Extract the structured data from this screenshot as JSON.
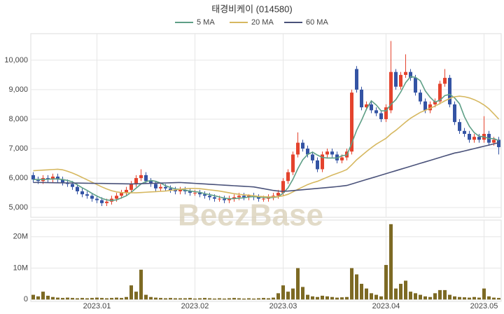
{
  "watermark": "BeezBase",
  "chart_data": [
    {
      "type": "candlestick",
      "title": "태경비케이 (014580)",
      "open": [
        6100,
        5950,
        5900,
        6000,
        5950,
        6050,
        5950,
        5850,
        5800,
        5700,
        5550,
        5450,
        5400,
        5300,
        5250,
        5150,
        5200,
        5300,
        5400,
        5500,
        5600,
        5800,
        6000,
        6100,
        5900,
        5800,
        5650,
        5700,
        5650,
        5600,
        5550,
        5600,
        5550,
        5500,
        5500,
        5450,
        5400,
        5350,
        5300,
        5300,
        5250,
        5300,
        5350,
        5400,
        5350,
        5400,
        5350,
        5300,
        5300,
        5350,
        5400,
        5500,
        5900,
        6200,
        6800,
        7200,
        7000,
        6800,
        6600,
        6300,
        6800,
        6900,
        6800,
        6600,
        6700,
        6900,
        9700,
        9000,
        8400,
        8500,
        8300,
        8200,
        8000,
        8300,
        9600,
        9100,
        9500,
        9600,
        9400,
        8900,
        8600,
        8300,
        8500,
        8600,
        9200,
        9400,
        8500,
        7900,
        7600,
        7500,
        7300,
        7400,
        7300,
        7500,
        7200,
        7300
      ],
      "high": [
        6200,
        6050,
        6100,
        6100,
        6150,
        6150,
        6050,
        5950,
        5900,
        5800,
        5650,
        5550,
        5500,
        5400,
        5350,
        5300,
        5400,
        5500,
        5600,
        5700,
        5900,
        6100,
        6300,
        6200,
        6000,
        5900,
        5800,
        5800,
        5750,
        5700,
        5700,
        5700,
        5650,
        5600,
        5600,
        5550,
        5500,
        5450,
        5400,
        5400,
        5400,
        5450,
        5500,
        5500,
        5450,
        5500,
        5450,
        5400,
        5450,
        5500,
        5600,
        6000,
        6300,
        6900,
        7550,
        7300,
        7100,
        6900,
        6700,
        6900,
        7000,
        7000,
        6900,
        6800,
        7000,
        9000,
        9800,
        9100,
        8600,
        8600,
        8400,
        8300,
        8500,
        10650,
        9700,
        9600,
        10200,
        9700,
        9500,
        9000,
        8700,
        8600,
        8700,
        9300,
        9700,
        9500,
        8600,
        8000,
        7700,
        7600,
        7500,
        7500,
        8100,
        7600,
        7400,
        7400
      ],
      "low": [
        5850,
        5800,
        5800,
        5850,
        5850,
        5850,
        5750,
        5700,
        5600,
        5450,
        5350,
        5300,
        5200,
        5150,
        5050,
        5050,
        5100,
        5200,
        5300,
        5400,
        5500,
        5700,
        5900,
        5800,
        5700,
        5550,
        5550,
        5550,
        5500,
        5450,
        5450,
        5450,
        5400,
        5400,
        5350,
        5300,
        5250,
        5200,
        5200,
        5150,
        5150,
        5200,
        5250,
        5250,
        5250,
        5250,
        5200,
        5200,
        5200,
        5250,
        5300,
        5400,
        5800,
        6100,
        6700,
        6900,
        6700,
        6500,
        6200,
        6200,
        6700,
        6700,
        6500,
        6500,
        6600,
        6800,
        8900,
        8300,
        8300,
        8200,
        8100,
        7900,
        7900,
        8200,
        9000,
        9000,
        9400,
        9300,
        8800,
        8500,
        8200,
        8200,
        8400,
        8500,
        9100,
        8400,
        7800,
        7500,
        7400,
        7200,
        7200,
        7200,
        7200,
        7100,
        7100,
        6800
      ],
      "close": [
        5950,
        5900,
        6000,
        5950,
        6050,
        5950,
        5850,
        5800,
        5700,
        5550,
        5450,
        5400,
        5300,
        5250,
        5150,
        5200,
        5300,
        5400,
        5500,
        5600,
        5800,
        6000,
        6100,
        5900,
        5800,
        5650,
        5700,
        5650,
        5600,
        5550,
        5600,
        5550,
        5500,
        5500,
        5450,
        5400,
        5350,
        5300,
        5300,
        5250,
        5300,
        5350,
        5400,
        5350,
        5400,
        5350,
        5300,
        5300,
        5350,
        5400,
        5500,
        5900,
        6200,
        6800,
        7200,
        7000,
        6800,
        6600,
        6300,
        6800,
        6900,
        6800,
        6600,
        6700,
        6900,
        8900,
        9000,
        8400,
        8500,
        8300,
        8200,
        8000,
        8400,
        9600,
        9100,
        9500,
        9600,
        9400,
        8900,
        8600,
        8300,
        8500,
        8600,
        9200,
        9400,
        8500,
        7900,
        7600,
        7500,
        7300,
        7400,
        7300,
        7500,
        7200,
        7300,
        7050
      ],
      "up_color": "#e4432d",
      "down_color": "#3454a4",
      "series": [
        {
          "name": "5 MA",
          "color": "#5e9f86",
          "values": [
            5950,
            5950,
            5950,
            5960,
            5970,
            5970,
            5950,
            5920,
            5870,
            5770,
            5670,
            5580,
            5480,
            5390,
            5310,
            5260,
            5240,
            5260,
            5330,
            5400,
            5520,
            5660,
            5800,
            5880,
            5920,
            5890,
            5830,
            5740,
            5680,
            5630,
            5620,
            5590,
            5560,
            5540,
            5520,
            5470,
            5440,
            5400,
            5360,
            5320,
            5300,
            5300,
            5320,
            5330,
            5360,
            5370,
            5360,
            5340,
            5340,
            5340,
            5370,
            5490,
            5670,
            5960,
            6320,
            6620,
            6800,
            6880,
            6780,
            6700,
            6680,
            6680,
            6680,
            6760,
            6780,
            7180,
            7620,
            7960,
            8340,
            8620,
            8480,
            8280,
            8280,
            8500,
            8660,
            8920,
            9240,
            9440,
            9420,
            9300,
            8960,
            8740,
            8580,
            8640,
            8800,
            8840,
            8720,
            8520,
            8080,
            7760,
            7540,
            7420,
            7400,
            7340,
            7340,
            7270
          ]
        },
        {
          "name": "20 MA",
          "color": "#d6b860",
          "values": [
            6250,
            6260,
            6270,
            6280,
            6290,
            6300,
            6280,
            6230,
            6170,
            6100,
            6020,
            5940,
            5860,
            5780,
            5700,
            5630,
            5570,
            5530,
            5510,
            5500,
            5500,
            5500,
            5510,
            5520,
            5530,
            5540,
            5550,
            5560,
            5580,
            5600,
            5620,
            5640,
            5650,
            5650,
            5640,
            5620,
            5600,
            5580,
            5560,
            5530,
            5500,
            5470,
            5450,
            5430,
            5420,
            5400,
            5380,
            5370,
            5360,
            5360,
            5370,
            5400,
            5450,
            5530,
            5620,
            5700,
            5780,
            5840,
            5890,
            5960,
            6030,
            6100,
            6160,
            6220,
            6290,
            6450,
            6620,
            6760,
            6900,
            7030,
            7150,
            7250,
            7350,
            7500,
            7620,
            7760,
            7900,
            8030,
            8130,
            8230,
            8300,
            8370,
            8440,
            8530,
            8620,
            8700,
            8760,
            8780,
            8760,
            8720,
            8660,
            8580,
            8480,
            8350,
            8180,
            8000
          ]
        },
        {
          "name": "60 MA",
          "color": "#4a527a",
          "values": [
            5850,
            5850,
            5848,
            5845,
            5842,
            5840,
            5838,
            5835,
            5832,
            5830,
            5828,
            5825,
            5822,
            5820,
            5818,
            5815,
            5812,
            5810,
            5808,
            5805,
            5800,
            5805,
            5810,
            5815,
            5820,
            5825,
            5830,
            5835,
            5840,
            5845,
            5850,
            5840,
            5830,
            5820,
            5810,
            5800,
            5790,
            5780,
            5770,
            5760,
            5750,
            5740,
            5730,
            5720,
            5710,
            5700,
            5670,
            5640,
            5610,
            5580,
            5560,
            5550,
            5560,
            5575,
            5590,
            5605,
            5620,
            5635,
            5650,
            5665,
            5680,
            5695,
            5710,
            5730,
            5750,
            5800,
            5850,
            5900,
            5950,
            6000,
            6050,
            6100,
            6150,
            6200,
            6250,
            6300,
            6350,
            6400,
            6450,
            6500,
            6550,
            6600,
            6650,
            6700,
            6750,
            6800,
            6850,
            6880,
            6920,
            6960,
            7000,
            7040,
            7080,
            7120,
            7160,
            7200
          ]
        }
      ],
      "ylim": [
        4670,
        10900
      ],
      "yticks": [
        {
          "value": 5000,
          "label": "5,000"
        },
        {
          "value": 6000,
          "label": "6,000"
        },
        {
          "value": 7000,
          "label": "7,000"
        },
        {
          "value": 8000,
          "label": "8,000"
        },
        {
          "value": 9000,
          "label": "9,000"
        },
        {
          "value": 10000,
          "label": "10,000"
        }
      ],
      "grid": true,
      "legend": "top"
    },
    {
      "type": "bar",
      "color": "#7d6a24",
      "values": [
        1.5,
        1,
        2.5,
        1.2,
        0.8,
        0.6,
        0.5,
        0.6,
        0.5,
        0.4,
        0.5,
        0.4,
        0.5,
        0.6,
        0.5,
        0.4,
        0.5,
        0.6,
        0.5,
        0.8,
        4.5,
        2.5,
        9.5,
        1.5,
        0.8,
        0.6,
        0.5,
        0.4,
        0.5,
        0.4,
        0.4,
        0.4,
        0.5,
        0.3,
        0.4,
        0.5,
        0.4,
        0.3,
        0.4,
        0.3,
        0.4,
        0.5,
        0.4,
        0.3,
        0.4,
        0.3,
        0.4,
        0.5,
        0.4,
        0.6,
        2,
        4.5,
        2.5,
        3.5,
        10,
        4,
        1.5,
        1,
        0.8,
        1.2,
        1,
        0.8,
        0.6,
        0.7,
        0.8,
        10,
        8,
        5,
        3.5,
        2,
        1.5,
        1,
        11,
        24,
        3.5,
        5,
        6,
        2.5,
        2,
        1.5,
        1,
        0.8,
        2,
        3,
        3,
        1.5,
        1,
        0.8,
        0.7,
        0.6,
        0.8,
        0.6,
        3.5,
        1,
        0.6,
        0.5
      ],
      "ylim": [
        -0.6,
        25.3
      ],
      "yticks": [
        0,
        {
          "value": 10,
          "label": "10M"
        },
        {
          "value": 20,
          "label": "20M"
        }
      ],
      "xticks": [
        {
          "value": 13,
          "label": "2023.01"
        },
        {
          "value": 33,
          "label": "2023.02"
        },
        {
          "value": 51,
          "label": "2023.03"
        },
        {
          "value": 72,
          "label": "2023.04"
        },
        {
          "value": 92,
          "label": "2023.05"
        }
      ],
      "grid": true
    }
  ]
}
